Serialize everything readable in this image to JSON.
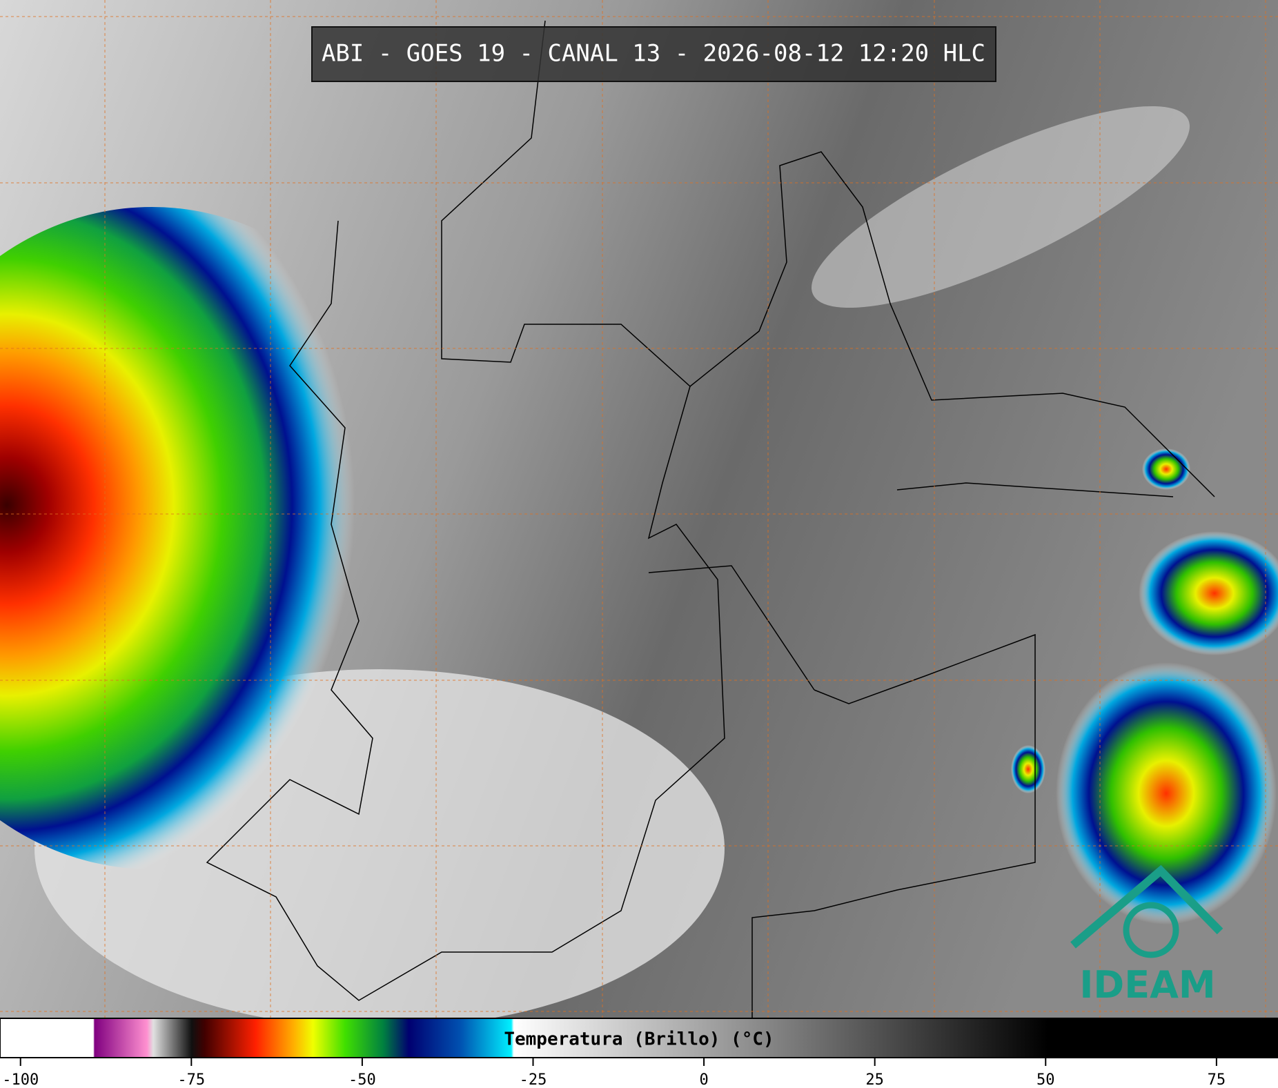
{
  "title": "ABI - GOES 19 - CANAL 13 - 2026-08-12 12:20 HLC",
  "colorbar": {
    "label": "Temperatura (Brillo) (°C)",
    "range": [
      -103,
      84
    ],
    "ticks": [
      -100,
      -75,
      -50,
      -25,
      0,
      25,
      50,
      75
    ]
  },
  "logo": "IDEAM"
}
